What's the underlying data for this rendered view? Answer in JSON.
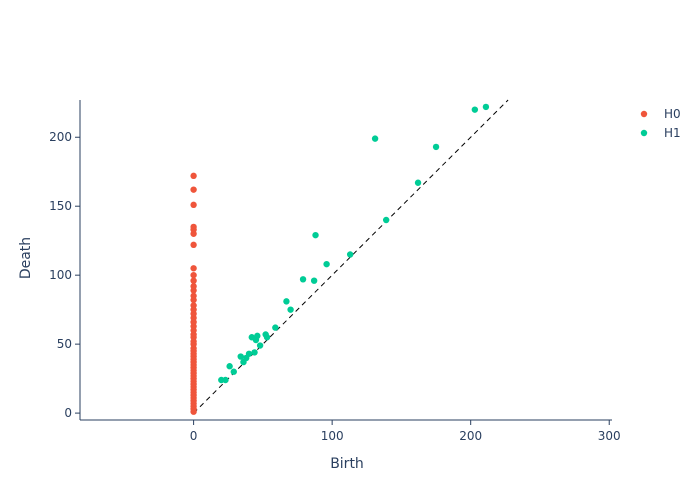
{
  "chart_data": {
    "type": "scatter",
    "title": "",
    "xlabel": "Birth",
    "ylabel": "Death",
    "xlim": [
      -82,
      302
    ],
    "ylim": [
      -5,
      227
    ],
    "x_ticks": [
      0,
      100,
      200,
      300
    ],
    "y_ticks": [
      0,
      50,
      100,
      150,
      200
    ],
    "grid": false,
    "legend_position": "top-right",
    "diagonal": {
      "from": [
        0,
        0
      ],
      "to": [
        227,
        227
      ],
      "style": "dashed",
      "color": "#000000"
    },
    "series": [
      {
        "name": "H0",
        "color": "#EF553B",
        "x": [
          0,
          0,
          0,
          0,
          0,
          0,
          0,
          0,
          0,
          0,
          0,
          0,
          0,
          0,
          0,
          0,
          0,
          0,
          0,
          0,
          0,
          0,
          0,
          0,
          0,
          0,
          0,
          0,
          0,
          0,
          0,
          0,
          0,
          0,
          0,
          0,
          0,
          0,
          0,
          0,
          0,
          0,
          0,
          0,
          0,
          0,
          0,
          0,
          0
        ],
        "y": [
          1,
          3,
          5,
          7,
          9,
          11,
          13,
          15,
          17,
          19,
          21,
          23,
          25,
          27,
          29,
          31,
          33,
          35,
          37,
          39,
          41,
          43,
          45,
          47,
          50,
          52,
          55,
          57,
          60,
          63,
          66,
          69,
          72,
          75,
          78,
          82,
          85,
          89,
          92,
          96,
          100,
          105,
          122,
          130,
          133,
          135,
          151,
          162,
          172
        ]
      },
      {
        "name": "H1",
        "color": "#00CC96",
        "x": [
          20,
          23,
          26,
          29,
          34,
          36,
          38,
          40,
          42,
          44,
          45,
          46,
          48,
          52,
          53,
          59,
          67,
          70,
          79,
          87,
          88,
          96,
          113,
          131,
          139,
          162,
          175,
          203,
          211
        ],
        "y": [
          24,
          24,
          34,
          30,
          41,
          37,
          40,
          43,
          55,
          44,
          53,
          56,
          49,
          57,
          55,
          62,
          81,
          75,
          97,
          96,
          129,
          108,
          115,
          199,
          140,
          167,
          193,
          220,
          222
        ]
      }
    ]
  }
}
